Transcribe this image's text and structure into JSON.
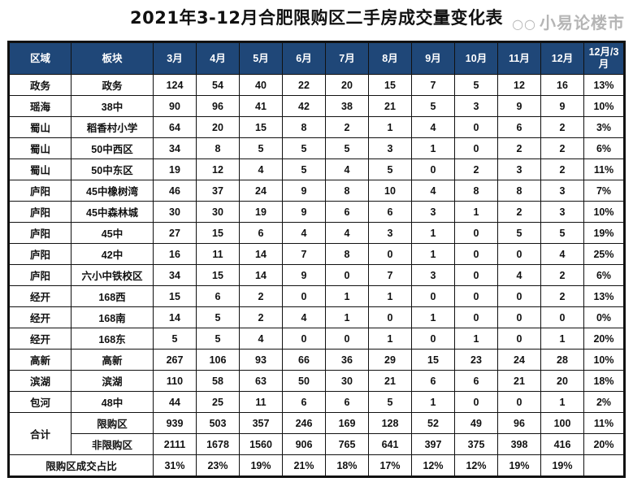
{
  "title": "2021年3-12月合肥限购区二手房成交量变化表",
  "header_color": "#1f4778",
  "columns": [
    "区域",
    "板块",
    "3月",
    "4月",
    "5月",
    "6月",
    "7月",
    "8月",
    "9月",
    "10月",
    "11月",
    "12月",
    "12月/3月"
  ],
  "rows": [
    {
      "region": "政务",
      "block": "政务",
      "values": [
        "124",
        "54",
        "40",
        "22",
        "20",
        "15",
        "7",
        "5",
        "12",
        "16",
        "13%"
      ]
    },
    {
      "region": "瑶海",
      "block": "38中",
      "values": [
        "90",
        "96",
        "41",
        "42",
        "38",
        "21",
        "5",
        "3",
        "9",
        "9",
        "10%"
      ]
    },
    {
      "region": "蜀山",
      "block": "稻香村小学",
      "values": [
        "64",
        "20",
        "15",
        "8",
        "2",
        "1",
        "4",
        "0",
        "6",
        "2",
        "3%"
      ]
    },
    {
      "region": "蜀山",
      "block": "50中西区",
      "values": [
        "34",
        "8",
        "5",
        "5",
        "5",
        "3",
        "1",
        "0",
        "2",
        "2",
        "6%"
      ]
    },
    {
      "region": "蜀山",
      "block": "50中东区",
      "values": [
        "19",
        "12",
        "4",
        "5",
        "4",
        "5",
        "0",
        "2",
        "3",
        "2",
        "11%"
      ]
    },
    {
      "region": "庐阳",
      "block": "45中橡树湾",
      "values": [
        "46",
        "37",
        "24",
        "9",
        "8",
        "10",
        "4",
        "8",
        "8",
        "3",
        "7%"
      ]
    },
    {
      "region": "庐阳",
      "block": "45中森林城",
      "values": [
        "30",
        "30",
        "19",
        "9",
        "6",
        "6",
        "3",
        "1",
        "2",
        "3",
        "10%"
      ]
    },
    {
      "region": "庐阳",
      "block": "45中",
      "values": [
        "27",
        "15",
        "6",
        "4",
        "4",
        "3",
        "1",
        "0",
        "5",
        "5",
        "19%"
      ]
    },
    {
      "region": "庐阳",
      "block": "42中",
      "values": [
        "16",
        "11",
        "14",
        "7",
        "8",
        "0",
        "1",
        "0",
        "0",
        "4",
        "25%"
      ]
    },
    {
      "region": "庐阳",
      "block": "六小中铁校区",
      "values": [
        "34",
        "15",
        "14",
        "9",
        "0",
        "7",
        "3",
        "0",
        "4",
        "2",
        "6%"
      ]
    },
    {
      "region": "经开",
      "block": "168西",
      "values": [
        "15",
        "6",
        "2",
        "0",
        "1",
        "1",
        "0",
        "0",
        "0",
        "2",
        "13%"
      ]
    },
    {
      "region": "经开",
      "block": "168南",
      "values": [
        "14",
        "5",
        "2",
        "4",
        "1",
        "0",
        "1",
        "0",
        "0",
        "0",
        "0%"
      ]
    },
    {
      "region": "经开",
      "block": "168东",
      "values": [
        "5",
        "5",
        "4",
        "0",
        "0",
        "1",
        "0",
        "1",
        "0",
        "1",
        "20%"
      ]
    },
    {
      "region": "高新",
      "block": "高新",
      "values": [
        "267",
        "106",
        "93",
        "66",
        "36",
        "29",
        "15",
        "23",
        "24",
        "28",
        "10%"
      ]
    },
    {
      "region": "滨湖",
      "block": "滨湖",
      "values": [
        "110",
        "58",
        "63",
        "50",
        "30",
        "21",
        "6",
        "6",
        "21",
        "20",
        "18%"
      ]
    },
    {
      "region": "包河",
      "block": "48中",
      "values": [
        "44",
        "25",
        "11",
        "6",
        "6",
        "5",
        "1",
        "0",
        "0",
        "1",
        "2%"
      ]
    }
  ],
  "totals": {
    "label": "合计",
    "rows": [
      {
        "block": "限购区",
        "values": [
          "939",
          "503",
          "357",
          "246",
          "169",
          "128",
          "52",
          "49",
          "96",
          "100",
          "11%"
        ]
      },
      {
        "block": "非限购区",
        "values": [
          "2111",
          "1678",
          "1560",
          "906",
          "765",
          "641",
          "397",
          "375",
          "398",
          "416",
          "20%"
        ]
      }
    ]
  },
  "share_row": {
    "label": "限购区成交占比",
    "values": [
      "31%",
      "23%",
      "19%",
      "21%",
      "18%",
      "17%",
      "12%",
      "12%",
      "19%",
      "19%",
      ""
    ]
  },
  "watermark": {
    "icon": "wechat-icon",
    "text": "小易论楼市"
  }
}
